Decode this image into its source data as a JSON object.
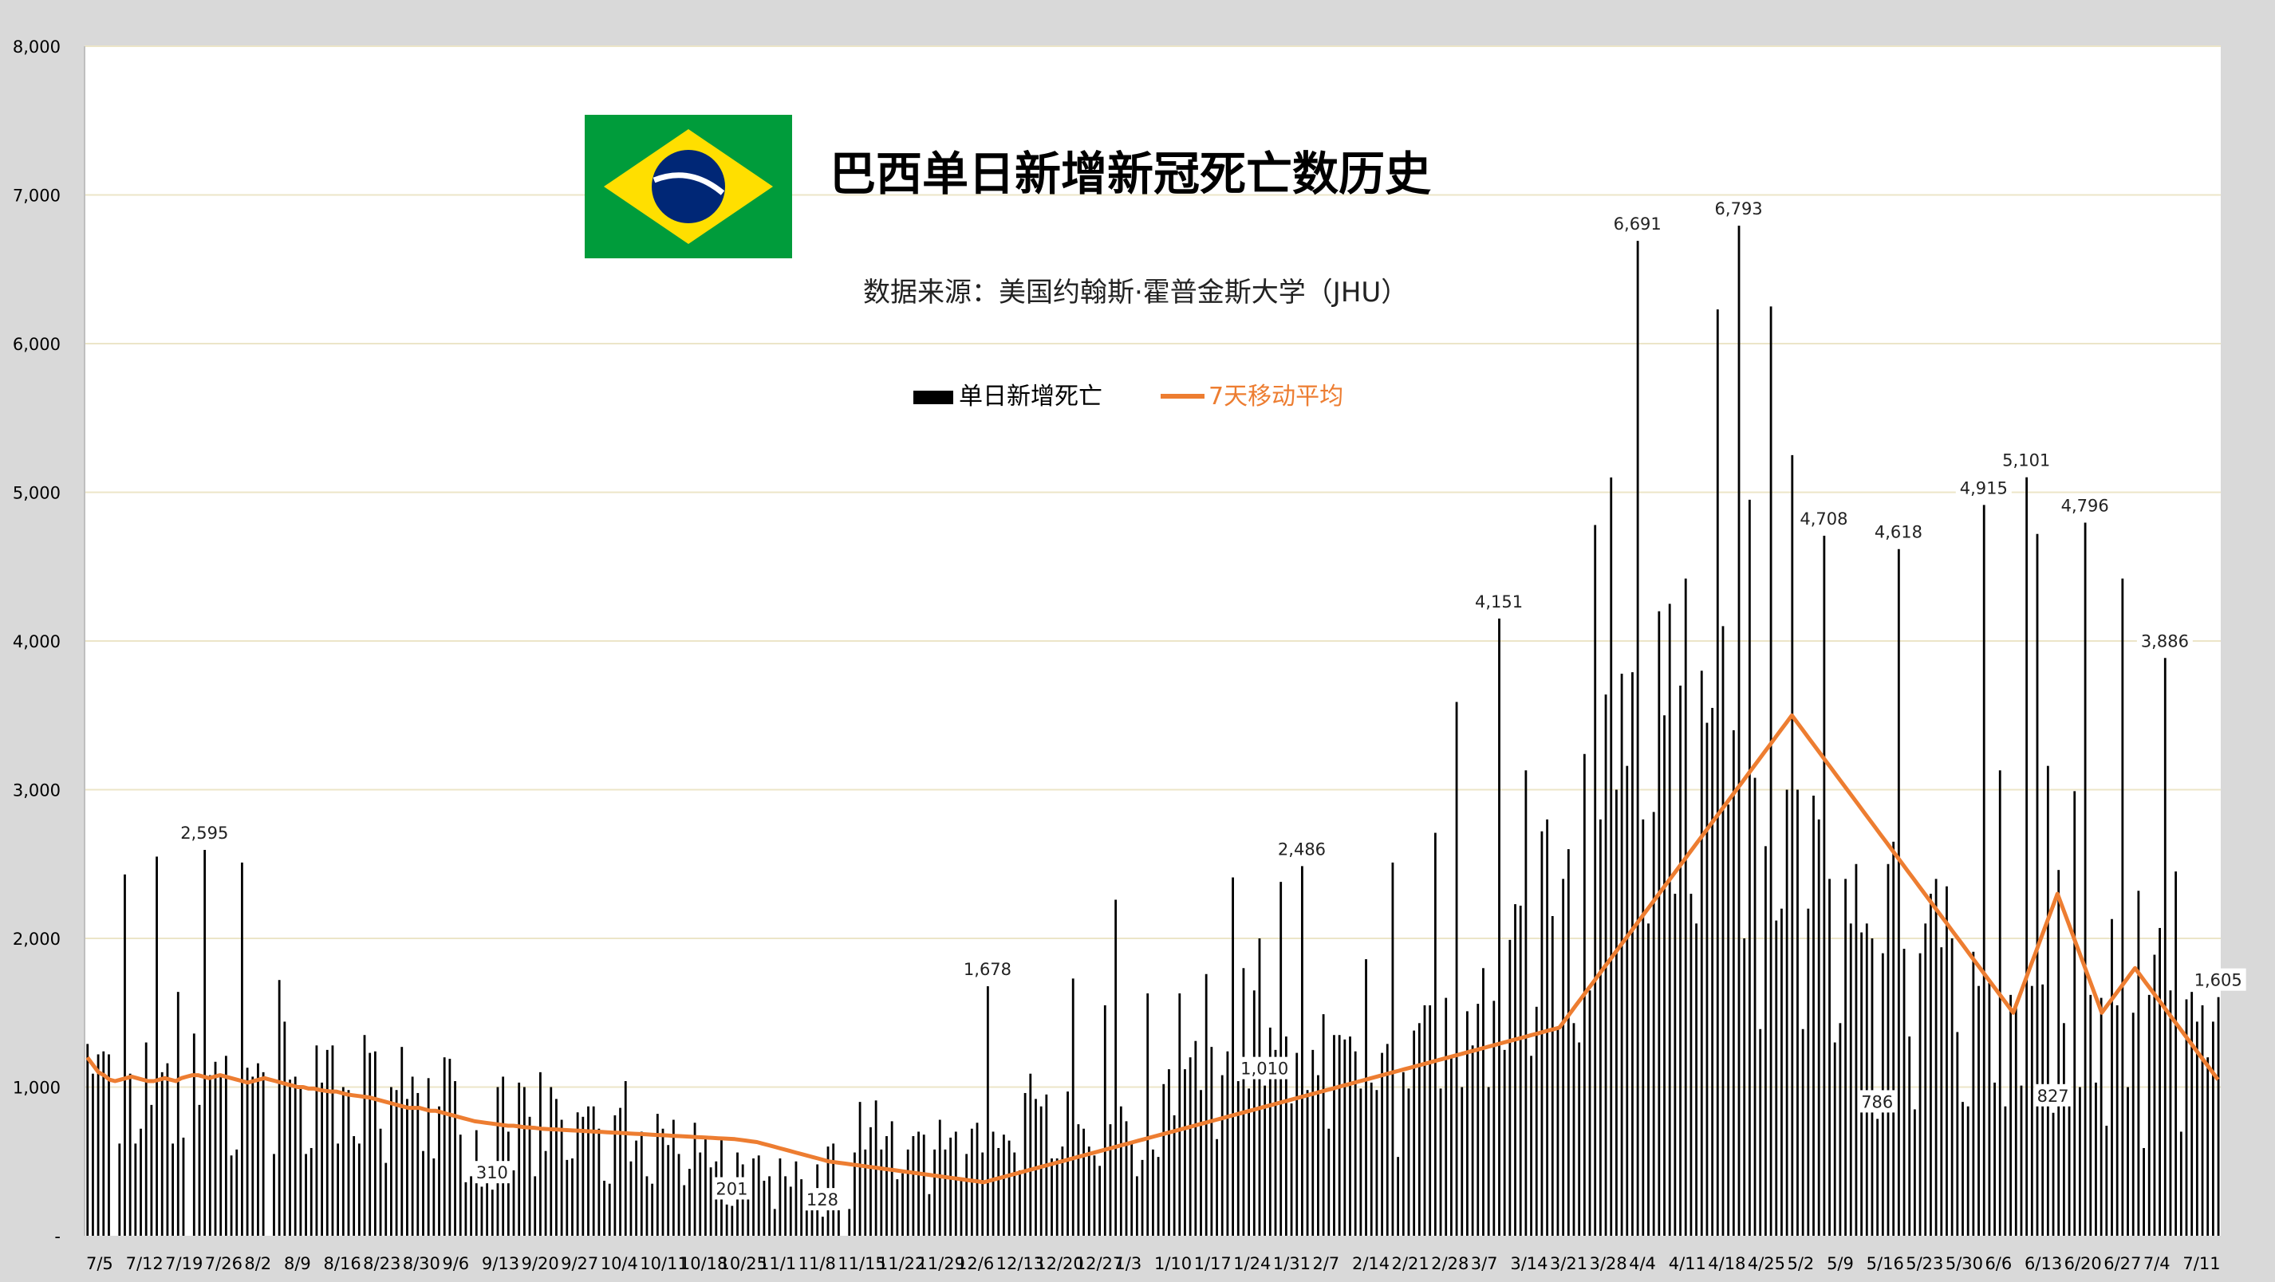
{
  "chart_data": {
    "type": "bar",
    "title": "巴西单日新增新冠死亡数历史",
    "subtitle": "数据来源：美国约翰斯·霍普金斯大学（JHU）",
    "y_ticks": [
      "8,000",
      "7,000",
      "6,000",
      "5,000",
      "4,000",
      "3,000",
      "2,000",
      "1,000",
      "-"
    ],
    "ylim": [
      0,
      8000
    ],
    "grid": true,
    "legend": {
      "placement": "top-center",
      "entries": [
        {
          "label": "单日新增死亡",
          "color": "#000000"
        },
        {
          "label": "7天移动平均",
          "color": "#ED7D31"
        }
      ]
    },
    "x_tick_labels": [
      "7/5",
      "7/12",
      "7/19",
      "7/26",
      "8/2",
      "8/9",
      "8/16",
      "8/23",
      "8/30",
      "9/6",
      "9/13",
      "9/20",
      "9/27",
      "10/4",
      "10/11",
      "10/18",
      "10/25",
      "11/1",
      "11/8",
      "11/15",
      "11/22",
      "11/29",
      "12/6",
      "12/13",
      "12/20",
      "12/27",
      "1/3",
      "1/10",
      "1/17",
      "1/24",
      "1/31",
      "2/7",
      "2/14",
      "2/21",
      "2/28",
      "3/7",
      "3/14",
      "3/21",
      "3/28",
      "4/4",
      "4/11",
      "4/18",
      "4/25",
      "5/2",
      "5/9",
      "5/16",
      "5/23",
      "5/30",
      "6/6",
      "6/13",
      "6/20",
      "6/27",
      "7/4",
      "7/11"
    ],
    "annotations": [
      {
        "label": "2,595",
        "value": 2595
      },
      {
        "label": "310",
        "value": 310
      },
      {
        "label": "201",
        "value": 201
      },
      {
        "label": "128",
        "value": 128
      },
      {
        "label": "1,678",
        "value": 1678
      },
      {
        "label": "2,486",
        "value": 2486
      },
      {
        "label": "4,151",
        "value": 4151
      },
      {
        "label": "6,691",
        "value": 6691
      },
      {
        "label": "6,793",
        "value": 6793
      },
      {
        "label": "4,708",
        "value": 4708
      },
      {
        "label": "786",
        "value": 786
      },
      {
        "label": "4,618",
        "value": 4618
      },
      {
        "label": "4,915",
        "value": 4915
      },
      {
        "label": "1,010",
        "value": 1010
      },
      {
        "label": "5,101",
        "value": 5101
      },
      {
        "label": "827",
        "value": 827
      },
      {
        "label": "4,796",
        "value": 4796
      },
      {
        "label": "3,886",
        "value": 3886
      },
      {
        "label": "1,605",
        "value": 1605
      }
    ],
    "series": [
      {
        "name": "单日新增死亡",
        "values": [
          1290,
          1090,
          1220,
          1240,
          1220,
          0,
          620,
          2430,
          1090,
          620,
          720,
          1300,
          880,
          2550,
          1100,
          1160,
          620,
          1640,
          660,
          0,
          1360,
          880,
          2595,
          1080,
          1170,
          1080,
          1210,
          540,
          580,
          2510,
          1130,
          1070,
          1160,
          1100,
          0,
          550,
          1720,
          1440,
          1050,
          1070,
          1000,
          550,
          590,
          1280,
          1030,
          1250,
          1280,
          620,
          1000,
          980,
          670,
          620,
          1350,
          1230,
          1240,
          720,
          490,
          1000,
          980,
          1270,
          920,
          1070,
          960,
          570,
          1060,
          520,
          870,
          1200,
          1190,
          1040,
          680,
          360,
          400,
          710,
          330,
          380,
          310,
          1000,
          1070,
          700,
          440,
          1030,
          1000,
          800,
          400,
          1100,
          570,
          1000,
          920,
          780,
          510,
          520,
          830,
          800,
          870,
          870,
          720,
          370,
          350,
          810,
          860,
          1040,
          500,
          640,
          700,
          400,
          350,
          820,
          720,
          610,
          780,
          550,
          340,
          450,
          760,
          560,
          650,
          460,
          500,
          660,
          210,
          201,
          560,
          480,
          330,
          520,
          540,
          370,
          400,
          180,
          520,
          400,
          330,
          500,
          380,
          170,
          190,
          480,
          128,
          600,
          620,
          280,
          0,
          180,
          560,
          900,
          580,
          730,
          910,
          580,
          670,
          770,
          380,
          420,
          580,
          670,
          700,
          680,
          280,
          580,
          780,
          580,
          660,
          700,
          390,
          550,
          720,
          760,
          560,
          1678,
          700,
          590,
          680,
          640,
          560,
          440,
          960,
          1090,
          920,
          870,
          950,
          520,
          520,
          600,
          970,
          1730,
          750,
          720,
          600,
          540,
          470,
          1550,
          750,
          2260,
          870,
          770,
          630,
          400,
          510,
          1630,
          580,
          530,
          1020,
          1120,
          810,
          1630,
          1120,
          1200,
          1310,
          980,
          1760,
          1270,
          650,
          1080,
          1240,
          2410,
          1040,
          1800,
          990,
          1650,
          2000,
          1010,
          1400,
          1250,
          2380,
          1340,
          890,
          1230,
          2486,
          980,
          1250,
          1080,
          1490,
          720,
          1350,
          1350,
          1320,
          1340,
          1240,
          990,
          1860,
          1030,
          980,
          1230,
          1290,
          2510,
          530,
          1100,
          990,
          1380,
          1430,
          1550,
          1550,
          2710,
          990,
          1600,
          1200,
          3590,
          1000,
          1510,
          1280,
          1560,
          1800,
          1000,
          1580,
          4151,
          1250,
          1990,
          2230,
          2220,
          3130,
          1210,
          1540,
          2720,
          2800,
          2150,
          1400,
          2400,
          2600,
          1430,
          1300,
          3240,
          1650,
          4780,
          2800,
          3640,
          5100,
          3000,
          3780,
          3160,
          3790,
          6691,
          2800,
          2100,
          2850,
          4200,
          3500,
          4250,
          2300,
          3700,
          4420,
          2300,
          2100,
          3800,
          3450,
          3550,
          6230,
          4100,
          2900,
          3400,
          6793,
          2000,
          4950,
          3080,
          1390,
          2620,
          6250,
          2120,
          2200,
          3000,
          5250,
          3000,
          1390,
          2200,
          2960,
          2800,
          4708,
          2400,
          1300,
          1430,
          2400,
          2100,
          2500,
          2040,
          2100,
          2000,
          786,
          1900,
          2500,
          2650,
          4618,
          1930,
          1340,
          850,
          1900,
          2100,
          2300,
          2400,
          1940,
          2350,
          2000,
          1370,
          900,
          870,
          1910,
          1680,
          4915,
          1700,
          1030,
          3130,
          870,
          1620,
          1560,
          1010,
          5101,
          1680,
          4720,
          1690,
          3160,
          827,
          2460,
          1430,
          890,
          2990,
          1000,
          4796,
          1620,
          1030,
          1600,
          740,
          2130,
          1550,
          4420,
          1000,
          1500,
          2320,
          590,
          1620,
          1890,
          2070,
          3886,
          1650,
          2450,
          700,
          1590,
          1640,
          1440,
          1550,
          1200,
          1440,
          1605
        ]
      },
      {
        "name": "7天移动平均",
        "values": [
          1200,
          1150,
          1100,
          1080,
          1050,
          1040,
          1050,
          1060,
          1070,
          1060,
          1050,
          1040,
          1040,
          1050,
          1060,
          1050,
          1040,
          1060,
          1070,
          1080,
          1080,
          1070,
          1060,
          1070,
          1080,
          1070,
          1060,
          1050,
          1040,
          1030,
          1040,
          1050,
          1060,
          1050,
          1040,
          1030,
          1020,
          1010,
          1000,
          1000,
          990,
          990,
          980,
          975,
          970,
          970,
          960,
          950,
          945,
          940,
          935,
          930,
          920,
          910,
          900,
          890,
          880,
          870,
          860,
          860,
          860,
          850,
          840,
          840,
          830,
          820,
          810,
          800,
          790,
          780,
          770,
          765,
          760,
          755,
          750,
          745,
          740,
          740,
          735,
          730,
          728,
          725,
          720,
          718,
          716,
          714,
          712,
          710,
          708,
          706,
          704,
          702,
          700,
          698,
          696,
          694,
          692,
          690,
          688,
          686,
          684,
          682,
          680,
          678,
          676,
          674,
          672,
          670,
          668,
          666,
          664,
          662,
          660,
          658,
          656,
          654,
          652,
          650,
          645,
          640,
          635,
          630,
          620,
          610,
          600,
          590,
          580,
          570,
          560,
          550,
          540,
          530,
          520,
          510,
          500,
          495,
          490,
          485,
          480,
          475,
          470,
          465,
          460,
          455,
          450,
          445,
          440,
          435,
          430,
          425,
          420,
          415,
          410,
          405,
          400,
          395,
          390,
          385,
          380,
          375,
          370,
          365,
          360,
          370,
          380,
          390,
          400,
          410,
          420,
          430,
          440,
          450,
          460,
          470,
          480,
          490,
          500,
          510,
          520,
          530,
          540,
          550,
          560,
          570,
          580,
          590,
          600,
          610,
          620,
          630,
          640,
          650,
          660,
          670,
          680,
          690,
          700,
          710,
          720,
          730,
          740,
          750,
          760,
          770,
          780,
          790,
          800,
          810,
          820,
          830,
          840,
          850,
          860,
          870,
          880,
          890,
          900,
          910,
          920,
          930,
          940,
          950,
          960,
          970,
          980,
          990,
          1000,
          1010,
          1020,
          1030,
          1040,
          1050,
          1060,
          1070,
          1080,
          1090,
          1100,
          1110,
          1120,
          1130,
          1140,
          1150,
          1160,
          1170,
          1180,
          1190,
          1200,
          1210,
          1220,
          1230,
          1240,
          1250,
          1260,
          1270,
          1280,
          1290,
          1300,
          1310,
          1320,
          1330,
          1340,
          1350,
          1360,
          1370,
          1380,
          1390,
          1400,
          1450,
          1500,
          1550,
          1600,
          1650,
          1700,
          1750,
          1800,
          1850,
          1900,
          1950,
          2000,
          2050,
          2100,
          2150,
          2200,
          2250,
          2300,
          2350,
          2400,
          2450,
          2500,
          2550,
          2600,
          2650,
          2700,
          2750,
          2800,
          2850,
          2900,
          2950,
          3000,
          3050,
          3100,
          3150,
          3200,
          3250,
          3300,
          3350,
          3400,
          3450,
          3500,
          3450,
          3400,
          3350,
          3300,
          3250,
          3200,
          3150,
          3100,
          3050,
          3000,
          2950,
          2900,
          2850,
          2800,
          2750,
          2700,
          2650,
          2600,
          2550,
          2500,
          2450,
          2400,
          2350,
          2300,
          2250,
          2200,
          2150,
          2100,
          2050,
          2000,
          1950,
          1900,
          1850,
          1800,
          1750,
          1700,
          1650,
          1600,
          1550,
          1500,
          1600,
          1700,
          1800,
          1900,
          2000,
          2100,
          2200,
          2300,
          2200,
          2100,
          2000,
          1900,
          1800,
          1700,
          1600,
          1500,
          1550,
          1600,
          1650,
          1700,
          1750,
          1800,
          1750,
          1700,
          1650,
          1600,
          1550,
          1500,
          1450,
          1400,
          1350,
          1300,
          1250,
          1200,
          1150,
          1100,
          1050
        ]
      }
    ]
  }
}
